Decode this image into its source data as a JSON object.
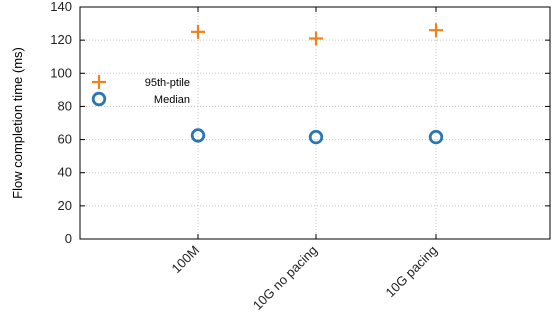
{
  "chart_data": {
    "type": "scatter",
    "ylabel": "Flow completion time (ms)",
    "xlabel": "",
    "categories": [
      "100M",
      "10G no pacing",
      "10G pacing"
    ],
    "ylim": [
      0,
      140
    ],
    "yticks": [
      0,
      20,
      40,
      60,
      80,
      100,
      120,
      140
    ],
    "grid": true,
    "legend_position": "top-left",
    "series": [
      {
        "name": "95th-ptile",
        "marker": "plus",
        "color": "#f0821e",
        "values": [
          125,
          121,
          126
        ]
      },
      {
        "name": "Median",
        "marker": "circle",
        "color": "#2a77b2",
        "values": [
          62.5,
          61.5,
          61.5
        ]
      }
    ]
  }
}
